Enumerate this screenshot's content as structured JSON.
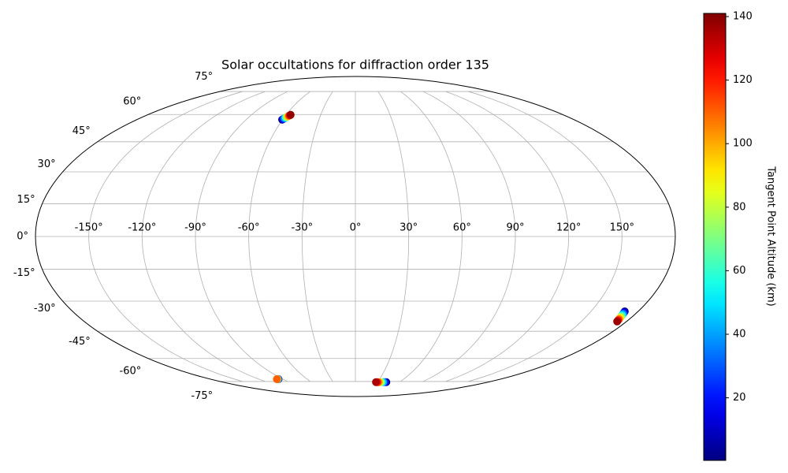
{
  "chart_data": {
    "type": "scatter",
    "projection": "mollweide",
    "title": "Solar occultations for diffraction order 135",
    "x": [
      -60.3,
      -59.7,
      -59.1,
      -58.5,
      -57.9,
      -57.3,
      -56.7,
      -56.1,
      -95.5,
      -96,
      -96.5,
      -97,
      -97.5,
      42,
      40,
      38,
      36,
      34,
      32,
      30,
      28,
      171.5,
      171.75,
      172.0,
      172.25,
      172.5,
      172.75,
      173.0,
      173.25,
      173.5,
      173.8
    ],
    "y": [
      57.0,
      57.4,
      57.8,
      58.2,
      58.6,
      59.0,
      59.4,
      59.8,
      -73.3,
      -73.3,
      -73.3,
      -73.3,
      -73.3,
      -75.5,
      -75.5,
      -75.5,
      -75.5,
      -75.5,
      -75.5,
      -75.5,
      -75.5,
      -35,
      -35.55,
      -36.1,
      -36.65,
      -37.2,
      -37.75,
      -38.3,
      -38.85,
      -39.4,
      -40.0
    ],
    "color_values": [
      2,
      20,
      40,
      60,
      80,
      100,
      120,
      138,
      2,
      30,
      60,
      95,
      110,
      2,
      20,
      40,
      60,
      80,
      100,
      120,
      135,
      2,
      17,
      32,
      47,
      62,
      77,
      92,
      107,
      122,
      137
    ],
    "xlim": [
      -180,
      180
    ],
    "ylim": [
      -90,
      90
    ],
    "xticks": [
      {
        "value": -150,
        "label": "-150°"
      },
      {
        "value": -120,
        "label": "-120°"
      },
      {
        "value": -90,
        "label": "-90°"
      },
      {
        "value": -60,
        "label": "-60°"
      },
      {
        "value": -30,
        "label": "-30°"
      },
      {
        "value": 0,
        "label": "0°"
      },
      {
        "value": 30,
        "label": "30°"
      },
      {
        "value": 60,
        "label": "60°"
      },
      {
        "value": 90,
        "label": "90°"
      },
      {
        "value": 120,
        "label": "120°"
      },
      {
        "value": 150,
        "label": "150°"
      }
    ],
    "yticks": [
      {
        "value": 75,
        "label": "75°"
      },
      {
        "value": 60,
        "label": "60°"
      },
      {
        "value": 45,
        "label": "45°"
      },
      {
        "value": 30,
        "label": "30°"
      },
      {
        "value": 15,
        "label": "15°"
      },
      {
        "value": 0,
        "label": "0°"
      },
      {
        "value": -15,
        "label": "-15°"
      },
      {
        "value": -30,
        "label": "-30°"
      },
      {
        "value": -45,
        "label": "-45°"
      },
      {
        "value": -60,
        "label": "-60°"
      },
      {
        "value": -75,
        "label": "-75°"
      }
    ],
    "grid": true,
    "colormap": "jet",
    "colorbar_label": "Tangent Point Altitude (km)",
    "clim": [
      0.3,
      141
    ],
    "cticks": [
      20,
      40,
      60,
      80,
      100,
      120,
      140
    ]
  }
}
